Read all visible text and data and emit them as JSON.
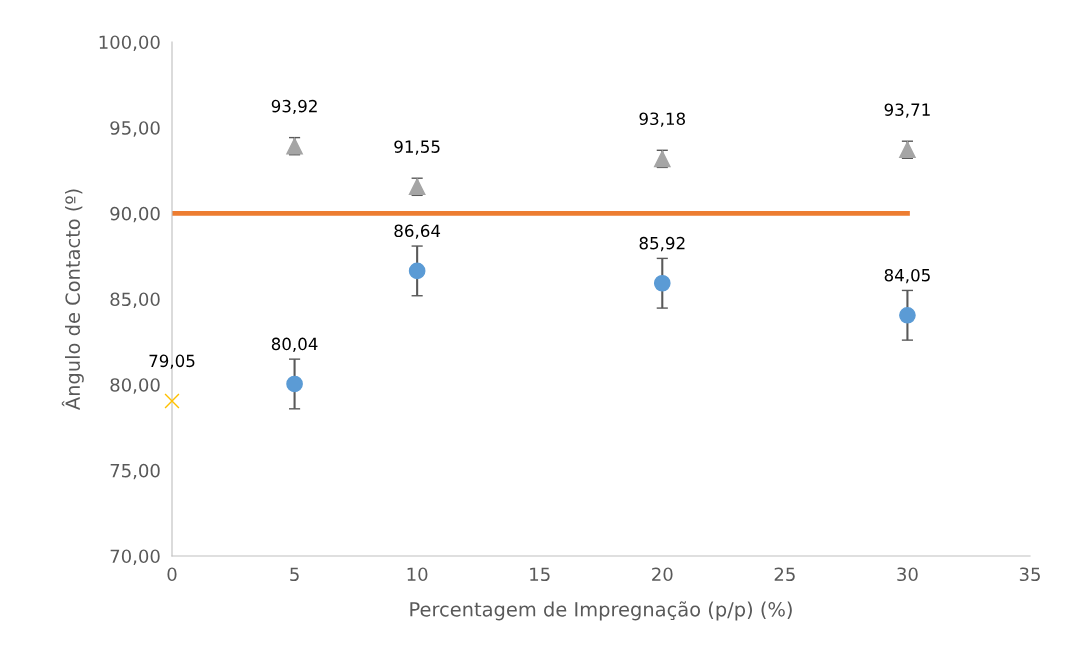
{
  "chart_data": {
    "type": "scatter",
    "xlabel": "Percentagem de Impregnação (p/p) (%)",
    "ylabel": "Ângulo de Contacto (º)",
    "xlim": [
      0,
      35
    ],
    "xticks": [
      0,
      5,
      10,
      15,
      20,
      25,
      30,
      35
    ],
    "ylim": [
      70,
      100
    ],
    "yticks": [
      {
        "value": 70,
        "label": "70,00"
      },
      {
        "value": 75,
        "label": "75,00"
      },
      {
        "value": 80,
        "label": "80,00"
      },
      {
        "value": 85,
        "label": "85,00"
      },
      {
        "value": 90,
        "label": "90,00"
      },
      {
        "value": 95,
        "label": "95,00"
      },
      {
        "value": 100,
        "label": "100,00"
      }
    ],
    "grid": false,
    "legend": false,
    "series": [
      {
        "type": "line",
        "color": "#ed7d31",
        "x": [
          0,
          30
        ],
        "values": [
          90,
          90
        ],
        "marker": "none"
      },
      {
        "color": "#a5a5a5",
        "marker": "triangle",
        "x": [
          5,
          10,
          20,
          30
        ],
        "values": [
          93.92,
          91.55,
          93.18,
          93.71
        ],
        "errors": [
          0.5,
          0.5,
          0.5,
          0.5
        ],
        "value_labels": [
          "93,92",
          "91,55",
          "93,18",
          "93,71"
        ]
      },
      {
        "color": "#5b9bd5",
        "marker": "circle",
        "x": [
          5,
          10,
          20,
          30
        ],
        "values": [
          80.04,
          86.64,
          85.92,
          84.05
        ],
        "errors": [
          1.45,
          1.45,
          1.45,
          1.45
        ],
        "value_labels": [
          "80,04",
          "86,64",
          "85,92",
          "84,05"
        ]
      },
      {
        "color": "#ffc000",
        "marker": "cross",
        "x": [
          0
        ],
        "values": [
          79.05
        ],
        "value_labels": [
          "79,05"
        ]
      }
    ]
  }
}
